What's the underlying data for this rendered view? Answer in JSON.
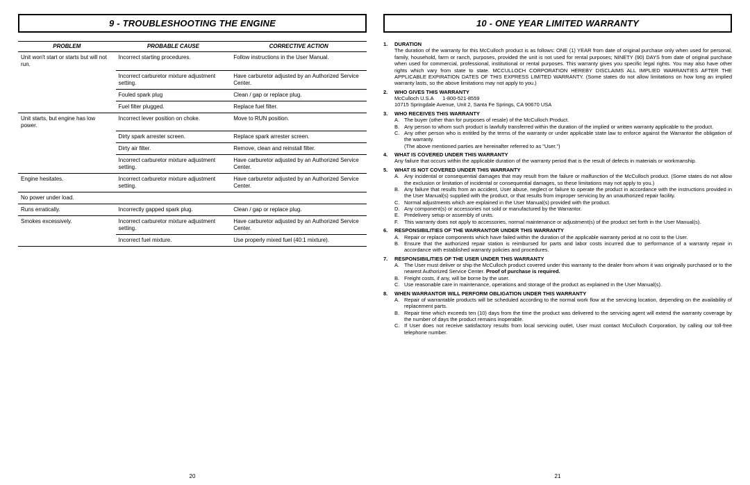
{
  "left": {
    "header": "9 - TROUBLESHOOTING THE ENGINE",
    "page_num": "20",
    "table": {
      "cols": [
        "PROBLEM",
        "PROBABLE CAUSE",
        "CORRECTIVE ACTION"
      ],
      "blocks": [
        {
          "problem": "Unit won't start or starts but will not run.",
          "rows": [
            {
              "cause": "Incorrect starting procedures.",
              "action": "Follow instructions in the User Manual."
            },
            {
              "cause": "Incorrect carburetor mixture adjustment setting.",
              "action": "Have carburetor adjusted by an Authorized Service Center."
            },
            {
              "cause": "Fouled spark plug",
              "action": "Clean / gap or replace plug."
            },
            {
              "cause": "Fuel filter plugged.",
              "action": "Replace fuel filter."
            }
          ]
        },
        {
          "problem": "Unit starts, but engine has low power.",
          "rows": [
            {
              "cause": "Incorrect lever position on choke.",
              "action": "Move to RUN position."
            },
            {
              "cause": "Dirty spark arrester screen.",
              "action": "Replace spark arrester screen."
            },
            {
              "cause": "Dirty air filter.",
              "action": "Remove, clean and reinstall filter."
            },
            {
              "cause": "Incorrect carburetor mixture adjustment setting.",
              "action": "Have carburetor adjusted by an Authorized Service Center."
            }
          ]
        },
        {
          "problem": "Engine hesitates.",
          "rows": [
            {
              "cause": "Incorrect carburetor mixture adjustment setting.",
              "action": "Have carburetor adjusted by an Authorized Service Center."
            }
          ]
        },
        {
          "problem": "No power under load.",
          "rows": [
            {
              "cause": "",
              "action": ""
            }
          ]
        },
        {
          "problem": "Runs erratically.",
          "rows": [
            {
              "cause": "Incorrectly gapped spark plug.",
              "action": "Clean / gap or replace plug."
            }
          ]
        },
        {
          "problem": "Smokes excessively.",
          "rows": [
            {
              "cause": "Incorrect carburetor mixture adjustment setting.",
              "action": "Have carburetor adjusted by an Authorized Service Center."
            },
            {
              "cause": "Incorrect fuel mixture.",
              "action": "Use properly mixed fuel (40:1 mixture)."
            }
          ]
        }
      ]
    }
  },
  "right": {
    "header": "10 - ONE YEAR LIMITED WARRANTY",
    "page_num": "21",
    "items": [
      {
        "h": "Duration",
        "body": "The duration of the warranty for this McCulloch product is as follows: ONE (1) YEAR from date of original purchase only when used for personal, family, household, farm or ranch, purposes, provided the unit is not used for rental purposes; NINETY (90) DAYS from date of original purchase when used for commercial, professional, institutional or rental purposes. This warranty gives you specific legal rights. You may also have other rights which vary from state to state. MCCULLOCH CORPORATION HEREBY DISCLAIMS ALL IMPLIED WARRANTIES AFTER THE APPLICABLE EXPIRATION DATES OF THIS EXPRESS LIMITED WARRANTY. (Some states do not allow limitations on how long an implied warranty lasts, so the above limitations may not apply to you.)"
      },
      {
        "h": "Who Gives This Warranty",
        "contact_name": "McCulloch U.S.A",
        "contact_phone": "1-800-521-8559",
        "contact_addr": "10715 Springdale Avenue, Unit 2, Santa Fe Springs, CA  90670 USA"
      },
      {
        "h": "Who Receives This Warranty",
        "sub": [
          "The buyer (other than for purposes of resale) of the McCulloch Product.",
          "Any person to whom such product is lawfully transferred within the duration of the implied or written warranty applicable to the product.",
          "Any other person who is entitled by the terms of the warranty or under applicable state law to enforce against the Warrantor the obligation of the warranty."
        ],
        "tail": "(The above mentioned parties are hereinafter referred to as \"User.\")"
      },
      {
        "h": "What Is Covered Under This Warranty",
        "body": "Any failure that occurs within the applicable duration of the warranty period that is the result of defects in materials or workmanship."
      },
      {
        "h": "What Is Not Covered Under This Warranty",
        "sub": [
          "Any incidental or consequential damages that may result from the failure or malfunction of the McCulloch product. (Some states do not allow the exclusion or limitation of incidental or consequential damages, so these limitations may not apply to you.)",
          "Any failure that results from an accident, User abuse, neglect or failure to operate the product in accordance with the instructions provided in the User Manual(s) supplied with the product, or that results from improper servicing by an unauthorized repair facility.",
          "Normal adjustments which are explained in the User Manual(s) provided with the product.",
          "Any component(s) or accessories not sold or manufactured by the Warrantor.",
          "Predelivery setup or assembly of units.",
          "This warranty does not apply to accessories, normal maintenance or adjustment(s) of the product set forth in the User Manual(s)."
        ]
      },
      {
        "h": "Responsibilities of the Warrantor Under This Warranty",
        "sub": [
          "Repair or replace components which have failed within the duration of the applicable warranty period at no cost to the User.",
          "Ensure that the authorized repair station is reimbursed for parts and labor costs incurred due to performance of a warranty repair in accordance with established warranty policies and procedures."
        ]
      },
      {
        "h": "Responsibilities of the User Under This Warranty",
        "sub": [
          "The User must deliver or ship the McCulloch product covered under this warranty to the dealer from whom it was originally purchased or to the nearest Authorized Service Center. <b>Proof of purchase is required.</b>",
          "Freight costs, if any, will be borne by the user.",
          "Use reasonable care in maintenance, operations and storage of the product as explained in the User Manual(s)."
        ]
      },
      {
        "h": "When Warrantor Will Perform Obligation Under This Warranty",
        "sub": [
          "Repair of warrantable products will be scheduled according to the normal work flow at the servicing location, depending on the availability of replacement parts.",
          "Repair time which exceeds ten (10) days from the time the product was delivered to the servicing agent will extend the warranty coverage by the number of days the product remains inoperable.",
          "If User does not receive satisfactory results from local servicing outlet, User must contact McCulloch Corporation, by calling our toll-free telephone number."
        ]
      }
    ]
  }
}
